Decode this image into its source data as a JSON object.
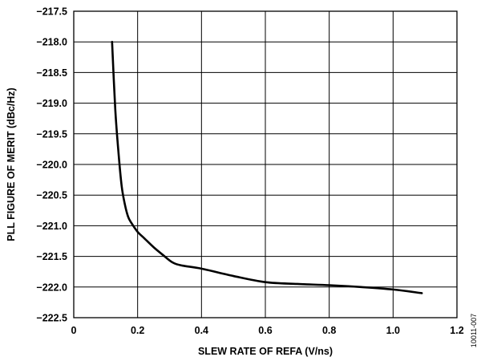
{
  "chart_data": {
    "type": "line",
    "title": "",
    "xlabel": "SLEW RATE OF REFA (V/ns)",
    "ylabel": "PLL FIGURE OF MERIT (dBc/Hz)",
    "xlim": [
      0,
      1.2
    ],
    "ylim": [
      -222.5,
      -217.5
    ],
    "xticks": [
      0,
      0.2,
      0.4,
      0.6,
      0.8,
      1.0,
      1.2
    ],
    "xtick_labels": [
      "0",
      "0.2",
      "0.4",
      "0.6",
      "0.8",
      "1.0",
      "1.2"
    ],
    "yticks": [
      -217.5,
      -218.0,
      -218.5,
      -219.0,
      -219.5,
      -220.0,
      -220.5,
      -221.0,
      -221.5,
      -222.0,
      -222.5
    ],
    "ytick_labels": [
      "−217.5",
      "−218.0",
      "−218.5",
      "−219.0",
      "−219.5",
      "−220.0",
      "−220.5",
      "−221.0",
      "−221.5",
      "−222.0",
      "−222.5"
    ],
    "grid": true,
    "legend": "none",
    "line_color": "#000000",
    "series": [
      {
        "x": [
          0.12,
          0.13,
          0.14,
          0.15,
          0.16,
          0.17,
          0.18,
          0.2,
          0.22,
          0.25,
          0.28,
          0.31,
          0.34,
          0.4,
          0.5,
          0.6,
          0.7,
          0.8,
          0.9,
          1.0,
          1.09
        ],
        "y": [
          -218.0,
          -219.1,
          -219.8,
          -220.35,
          -220.65,
          -220.85,
          -220.95,
          -221.1,
          -221.2,
          -221.35,
          -221.48,
          -221.6,
          -221.65,
          -221.7,
          -221.82,
          -221.92,
          -221.95,
          -221.97,
          -222.0,
          -222.04,
          -222.1
        ]
      }
    ],
    "figure_id": "10011-007"
  }
}
